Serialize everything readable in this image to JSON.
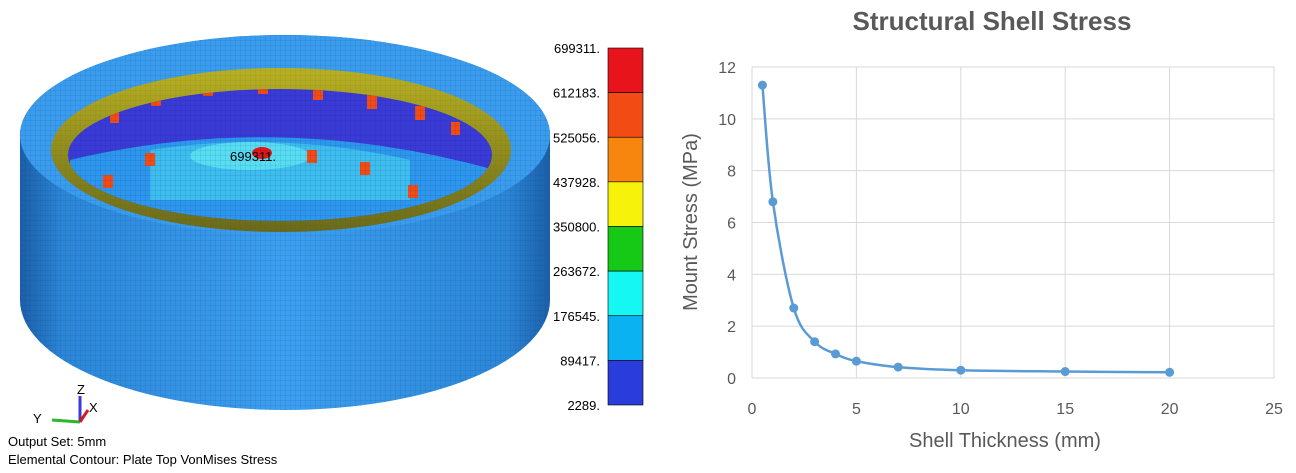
{
  "fea": {
    "peak_label": "699311.",
    "legend_labels": [
      "699311.",
      "612183.",
      "525056.",
      "437928.",
      "350800.",
      "263672.",
      "176545.",
      "89417.",
      "2289."
    ],
    "legend_colors": [
      "#e8141c",
      "#f24b14",
      "#f7860f",
      "#f7f20a",
      "#16c916",
      "#14f7f2",
      "#0ab2f2",
      "#2a3ddc"
    ],
    "axis_labels": {
      "z": "Z",
      "y": "Y",
      "x": "X"
    },
    "output_set": "Output Set: 5mm",
    "contour": "Elemental Contour: Plate Top VonMises Stress"
  },
  "chart_data": {
    "type": "line",
    "title": "Structural Shell Stress",
    "xlabel": "Shell Thickness (mm)",
    "ylabel": "Mount Stress (MPa)",
    "xlim": [
      0,
      25
    ],
    "ylim": [
      0,
      12
    ],
    "xticks": [
      0,
      5,
      10,
      15,
      20,
      25
    ],
    "yticks": [
      0,
      2,
      4,
      6,
      8,
      10,
      12
    ],
    "grid": true,
    "line_color": "#5b9bd5",
    "series": [
      {
        "x": [
          0.5,
          1,
          2,
          3,
          4,
          5,
          7,
          10,
          15,
          20
        ],
        "y": [
          11.3,
          6.8,
          2.7,
          1.4,
          0.93,
          0.65,
          0.42,
          0.3,
          0.25,
          0.22
        ]
      }
    ]
  }
}
